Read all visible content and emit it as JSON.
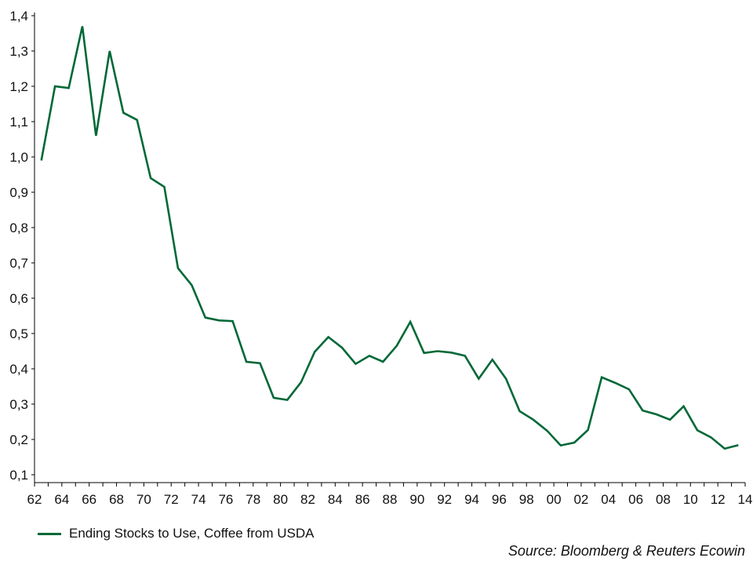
{
  "chart_data": {
    "type": "line",
    "x_tick_labels": [
      "62",
      "64",
      "66",
      "68",
      "70",
      "72",
      "74",
      "76",
      "78",
      "80",
      "82",
      "84",
      "86",
      "88",
      "90",
      "92",
      "94",
      "96",
      "98",
      "00",
      "02",
      "04",
      "06",
      "08",
      "10",
      "12",
      "14"
    ],
    "y_tick_labels": [
      "0,1",
      "0,2",
      "0,3",
      "0,4",
      "0,5",
      "0,6",
      "0,7",
      "0,8",
      "0,9",
      "1,0",
      "1,1",
      "1,2",
      "1,3",
      "1,4"
    ],
    "xlim": [
      1962,
      2014
    ],
    "ylim": [
      0.1,
      1.4
    ],
    "grid": false,
    "legend_position": "bottom-left",
    "series": [
      {
        "name": "Ending Stocks to Use, Coffee from USDA",
        "color": "#006837",
        "x": [
          1962.5,
          1963.5,
          1964.5,
          1965.5,
          1966.5,
          1967.5,
          1968.5,
          1969.5,
          1970.5,
          1971.5,
          1972.5,
          1973.5,
          1974.5,
          1975.5,
          1976.5,
          1977.5,
          1978.5,
          1979.5,
          1980.5,
          1981.5,
          1982.5,
          1983.5,
          1984.5,
          1985.5,
          1986.5,
          1987.5,
          1988.5,
          1989.5,
          1990.5,
          1991.5,
          1992.5,
          1993.5,
          1994.5,
          1995.5,
          1996.5,
          1997.5,
          1998.5,
          1999.5,
          2000.5,
          2001.5,
          2002.5,
          2003.5,
          2004.5,
          2005.5,
          2006.5,
          2007.5,
          2008.5,
          2009.5,
          2010.5,
          2011.5,
          2012.5,
          2013.5
        ],
        "values": [
          0.99,
          1.2,
          1.195,
          1.37,
          1.06,
          1.3,
          1.125,
          1.105,
          0.94,
          0.915,
          0.685,
          0.637,
          0.545,
          0.537,
          0.535,
          0.42,
          0.416,
          0.318,
          0.312,
          0.362,
          0.448,
          0.49,
          0.46,
          0.414,
          0.437,
          0.42,
          0.465,
          0.533,
          0.445,
          0.45,
          0.446,
          0.437,
          0.372,
          0.426,
          0.372,
          0.28,
          0.256,
          0.225,
          0.183,
          0.191,
          0.227,
          0.376,
          0.36,
          0.342,
          0.282,
          0.271,
          0.256,
          0.294,
          0.226,
          0.206,
          0.174,
          0.184
        ]
      }
    ]
  },
  "legend": {
    "label": "Ending Stocks to Use, Coffee from USDA",
    "color": "#006837"
  },
  "source": "Source: Bloomberg & Reuters Ecowin"
}
